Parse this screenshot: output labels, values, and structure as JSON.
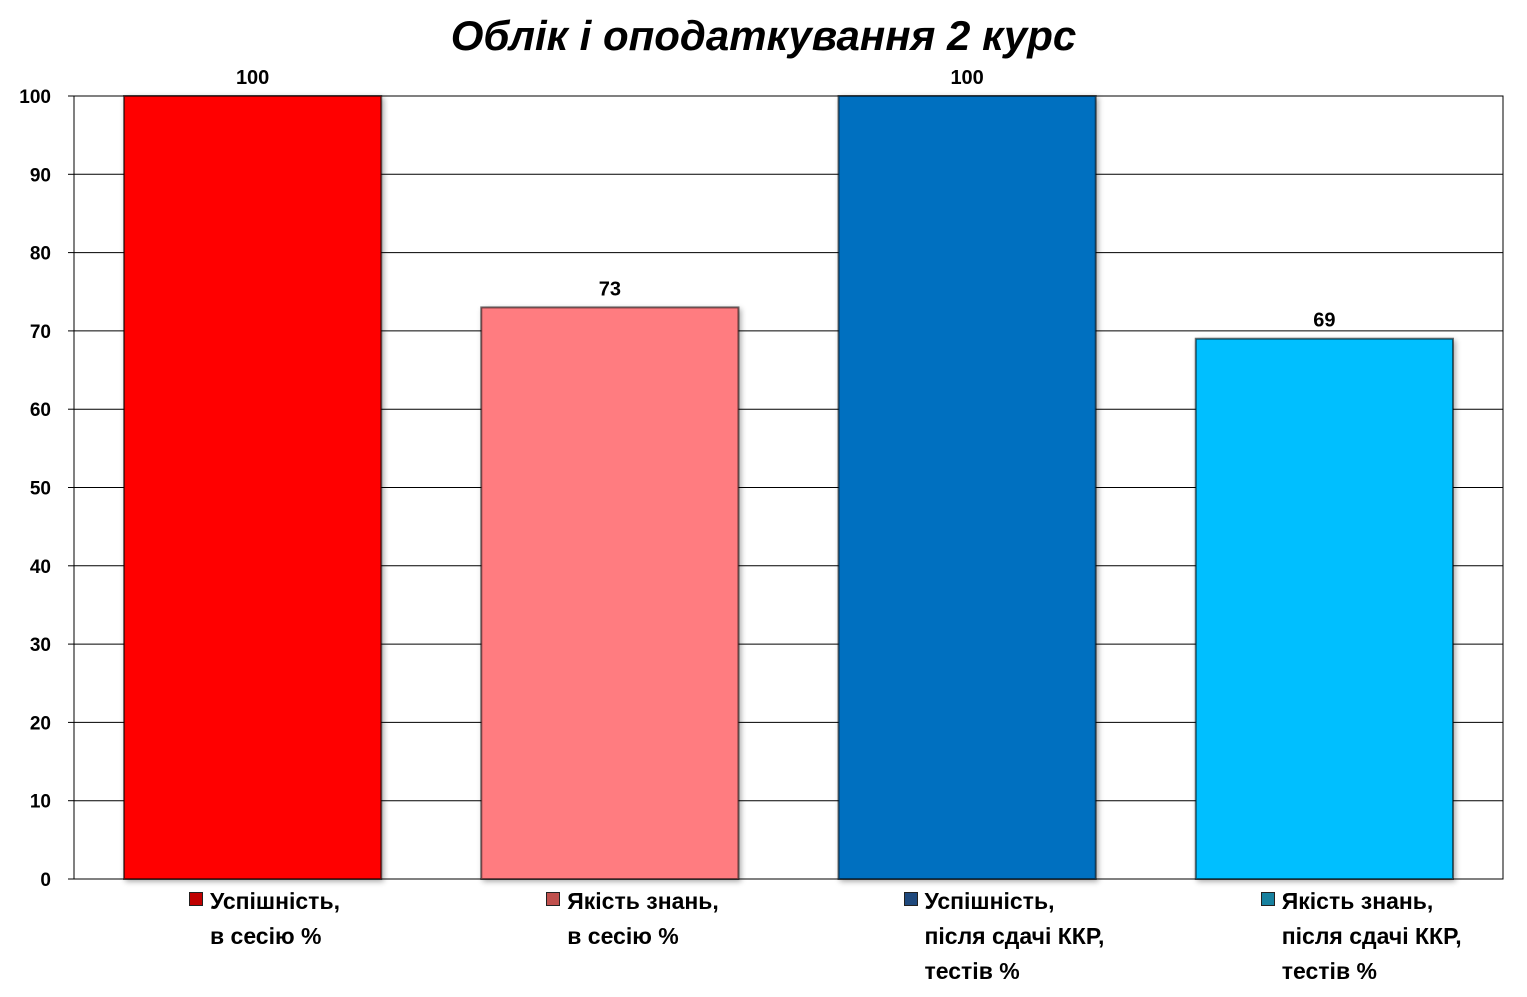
{
  "chart_data": {
    "type": "bar",
    "title": "Облік і оподаткування 2 курс",
    "categories": [
      "Успішність,\nв сесію %",
      "Якість знань,\nв сесію %",
      "Успішність,\nпісля сдачі ККР,\nтестів %",
      "Якість знань,\nпісля сдачі ККР,\nтестів %"
    ],
    "values": [
      100,
      73,
      100,
      69
    ],
    "data_labels": [
      "100",
      "73",
      "100",
      "69"
    ],
    "colors": [
      "#ff0000",
      "#ff7c80",
      "#0070c0",
      "#00bfff"
    ],
    "legend_swatch_colors": [
      "#c00000",
      "#c0504d",
      "#1f497d",
      "#17819f"
    ],
    "ylim": [
      0,
      100
    ],
    "yticks": [
      0,
      10,
      20,
      30,
      40,
      50,
      60,
      70,
      80,
      90,
      100
    ],
    "grid": true,
    "legend_position": "bottom",
    "xlabel": "",
    "ylabel": ""
  }
}
